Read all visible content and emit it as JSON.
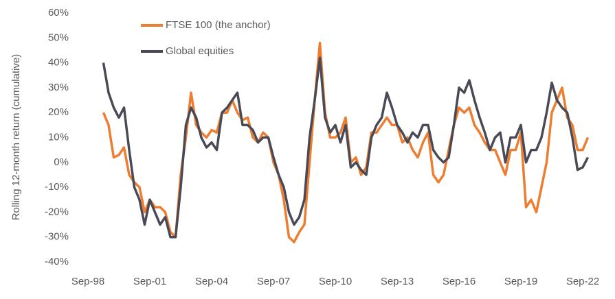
{
  "chart_data": {
    "type": "line",
    "y_label": "Rolling 12-month return (cumulative)",
    "categories": [
      "Sep-98",
      null,
      null,
      null,
      null,
      null,
      null,
      null,
      null,
      null,
      null,
      null,
      "Sep-01",
      null,
      null,
      null,
      null,
      null,
      null,
      null,
      null,
      null,
      null,
      null,
      "Sep-04",
      null,
      null,
      null,
      null,
      null,
      null,
      null,
      null,
      null,
      null,
      null,
      "Sep-07",
      null,
      null,
      null,
      null,
      null,
      null,
      null,
      null,
      null,
      null,
      null,
      "Sep-10",
      null,
      null,
      null,
      null,
      null,
      null,
      null,
      null,
      null,
      null,
      null,
      "Sep-13",
      null,
      null,
      null,
      null,
      null,
      null,
      null,
      null,
      null,
      null,
      null,
      "Sep-16",
      null,
      null,
      null,
      null,
      null,
      null,
      null,
      null,
      null,
      null,
      null,
      "Sep-19",
      null,
      null,
      null,
      null,
      null,
      null,
      null,
      null,
      null,
      null,
      null,
      "Sep-22",
      null
    ],
    "series": [
      {
        "name": "FTSE 100 (the anchor)",
        "color": "#ed7d31",
        "values": [
          null,
          null,
          null,
          20,
          15,
          2,
          3,
          6,
          -5,
          -8,
          -10,
          -20,
          -15,
          -18,
          -18,
          -20,
          -28,
          -30,
          -5,
          10,
          28,
          15,
          12,
          10,
          13,
          12,
          20,
          20,
          25,
          20,
          17,
          18,
          10,
          8,
          12,
          10,
          0,
          -5,
          -15,
          -30,
          -32,
          -28,
          -25,
          0,
          25,
          48,
          20,
          10,
          10,
          12,
          18,
          0,
          2,
          -5,
          -2,
          12,
          12,
          15,
          18,
          15,
          15,
          8,
          10,
          5,
          2,
          8,
          12,
          -5,
          -8,
          -5,
          5,
          15,
          22,
          20,
          22,
          15,
          12,
          8,
          5,
          5,
          0,
          -5,
          5,
          5,
          12,
          -18,
          -15,
          -20,
          -10,
          0,
          20,
          25,
          30,
          18,
          15,
          5,
          5,
          10
        ]
      },
      {
        "name": "Global equities",
        "color": "#4a4a56",
        "values": [
          null,
          null,
          null,
          40,
          28,
          22,
          18,
          22,
          5,
          -10,
          -15,
          -25,
          -15,
          -20,
          -25,
          -22,
          -30,
          -30,
          -10,
          15,
          22,
          18,
          10,
          6,
          8,
          5,
          20,
          22,
          25,
          28,
          15,
          15,
          13,
          8,
          10,
          10,
          2,
          -5,
          -10,
          -20,
          -25,
          -22,
          -15,
          10,
          25,
          42,
          18,
          12,
          15,
          8,
          15,
          -2,
          0,
          -3,
          -5,
          10,
          15,
          18,
          28,
          22,
          15,
          12,
          8,
          12,
          10,
          15,
          15,
          5,
          2,
          0,
          2,
          15,
          30,
          28,
          33,
          25,
          18,
          12,
          5,
          10,
          12,
          0,
          10,
          10,
          15,
          0,
          5,
          5,
          10,
          20,
          32,
          25,
          22,
          20,
          10,
          -3,
          -2,
          2
        ]
      }
    ],
    "ylim": [
      -40,
      60
    ],
    "yticks": [
      {
        "value": -40,
        "label": "-40%"
      },
      {
        "value": -30,
        "label": "-30%"
      },
      {
        "value": -20,
        "label": "-20%"
      },
      {
        "value": -10,
        "label": "-10%"
      },
      {
        "value": 0,
        "label": "0%"
      },
      {
        "value": 10,
        "label": "10%"
      },
      {
        "value": 20,
        "label": "20%"
      },
      {
        "value": 30,
        "label": "30%"
      },
      {
        "value": 40,
        "label": "40%"
      },
      {
        "value": 50,
        "label": "50%"
      },
      {
        "value": 60,
        "label": "60%"
      }
    ],
    "grid": false
  }
}
